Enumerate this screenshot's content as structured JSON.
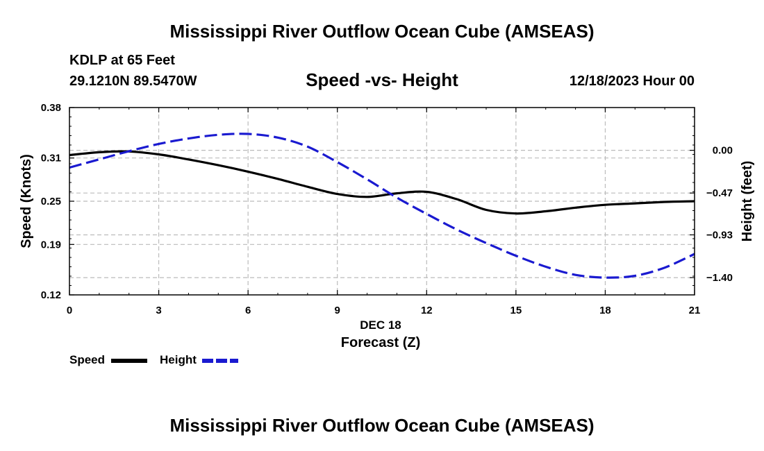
{
  "header": {
    "title": "Mississippi River Outflow Ocean Cube (AMSEAS)",
    "station": "KDLP at 65 Feet",
    "coordinates": "29.1210N  89.5470W",
    "subtitle": "Speed -vs- Height",
    "datetime": "12/18/2023 Hour 00"
  },
  "footer": {
    "title": "Mississippi River Outflow Ocean Cube (AMSEAS)"
  },
  "legend": {
    "speed_label": "Speed",
    "height_label": "Height"
  },
  "colors": {
    "speed": "#000000",
    "height": "#1a1ad0",
    "grid": "#bbbbbb"
  },
  "chart_data": {
    "type": "line",
    "title": "Speed -vs- Height",
    "xlabel": "Forecast (Z)",
    "xlabel_date": "DEC 18",
    "ylabel_left": "Speed (Knots)",
    "ylabel_right": "Height (feet)",
    "xlim": [
      0,
      21
    ],
    "ylim_left": [
      0.12,
      0.38
    ],
    "ylim_right": [
      -1.59,
      0.47
    ],
    "x_ticks": [
      0,
      3,
      6,
      9,
      12,
      15,
      18,
      21
    ],
    "x_tick_labels": [
      "0",
      "3",
      "6",
      "9",
      "12",
      "15",
      "18",
      "21"
    ],
    "left_ticks": [
      0.12,
      0.19,
      0.25,
      0.31,
      0.38
    ],
    "left_tick_labels": [
      "0.12",
      "0.19",
      "0.25",
      "0.31",
      "0.38"
    ],
    "right_ticks": [
      0.0,
      -0.47,
      -0.93,
      -1.4
    ],
    "right_tick_labels": [
      "0.00",
      "−0.47",
      "−0.93",
      "−1.40"
    ],
    "grid": true,
    "series": [
      {
        "name": "Speed",
        "axis": "left",
        "style": "solid",
        "x": [
          0,
          1,
          2,
          3,
          4,
          5,
          6,
          7,
          8,
          9,
          10,
          11,
          12,
          13,
          14,
          15,
          16,
          17,
          18,
          19,
          20,
          21
        ],
        "values": [
          0.314,
          0.318,
          0.319,
          0.315,
          0.308,
          0.3,
          0.291,
          0.281,
          0.27,
          0.26,
          0.256,
          0.261,
          0.263,
          0.253,
          0.238,
          0.233,
          0.236,
          0.241,
          0.245,
          0.247,
          0.249,
          0.25
        ]
      },
      {
        "name": "Height",
        "axis": "right",
        "style": "dashed",
        "x": [
          0,
          1,
          2,
          3,
          4,
          5,
          6,
          7,
          8,
          9,
          10,
          11,
          12,
          13,
          14,
          15,
          16,
          17,
          18,
          19,
          20,
          21
        ],
        "values": [
          -0.19,
          -0.1,
          -0.01,
          0.07,
          0.13,
          0.17,
          0.18,
          0.14,
          0.04,
          -0.13,
          -0.32,
          -0.52,
          -0.7,
          -0.87,
          -1.02,
          -1.16,
          -1.28,
          -1.37,
          -1.4,
          -1.38,
          -1.29,
          -1.14
        ]
      }
    ]
  }
}
